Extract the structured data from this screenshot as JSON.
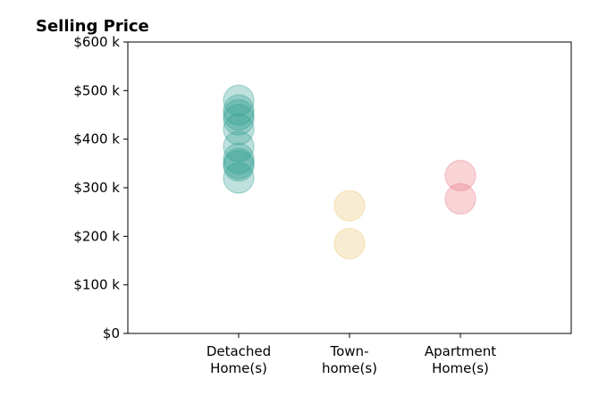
{
  "chart_data": {
    "type": "scatter",
    "title": "Selling Price",
    "xlabel": "",
    "ylabel": "",
    "ylim": [
      0,
      600000
    ],
    "y_ticks": [
      {
        "value": 0,
        "label": "$0"
      },
      {
        "value": 100000,
        "label": "$100 k"
      },
      {
        "value": 200000,
        "label": "$200 k"
      },
      {
        "value": 300000,
        "label": "$300 k"
      },
      {
        "value": 400000,
        "label": "$400 k"
      },
      {
        "value": 500000,
        "label": "$500 k"
      },
      {
        "value": 600000,
        "label": "$600 k"
      }
    ],
    "categories": [
      {
        "lines": [
          "Detached",
          "Home(s)"
        ]
      },
      {
        "lines": [
          "Town-",
          "home(s)"
        ]
      },
      {
        "lines": [
          "Apartment",
          "Home(s)"
        ]
      }
    ],
    "grid": false,
    "series": [
      {
        "category_index": 0,
        "color": "#2a9d8f",
        "values": [
          480000,
          460000,
          450000,
          440000,
          420000,
          385000,
          360000,
          350000,
          345000,
          320000
        ]
      },
      {
        "category_index": 1,
        "color": "#e9c46a",
        "values": [
          263000,
          185000
        ]
      },
      {
        "category_index": 2,
        "color": "#e76f7c",
        "values": [
          325000,
          277000
        ]
      }
    ]
  }
}
